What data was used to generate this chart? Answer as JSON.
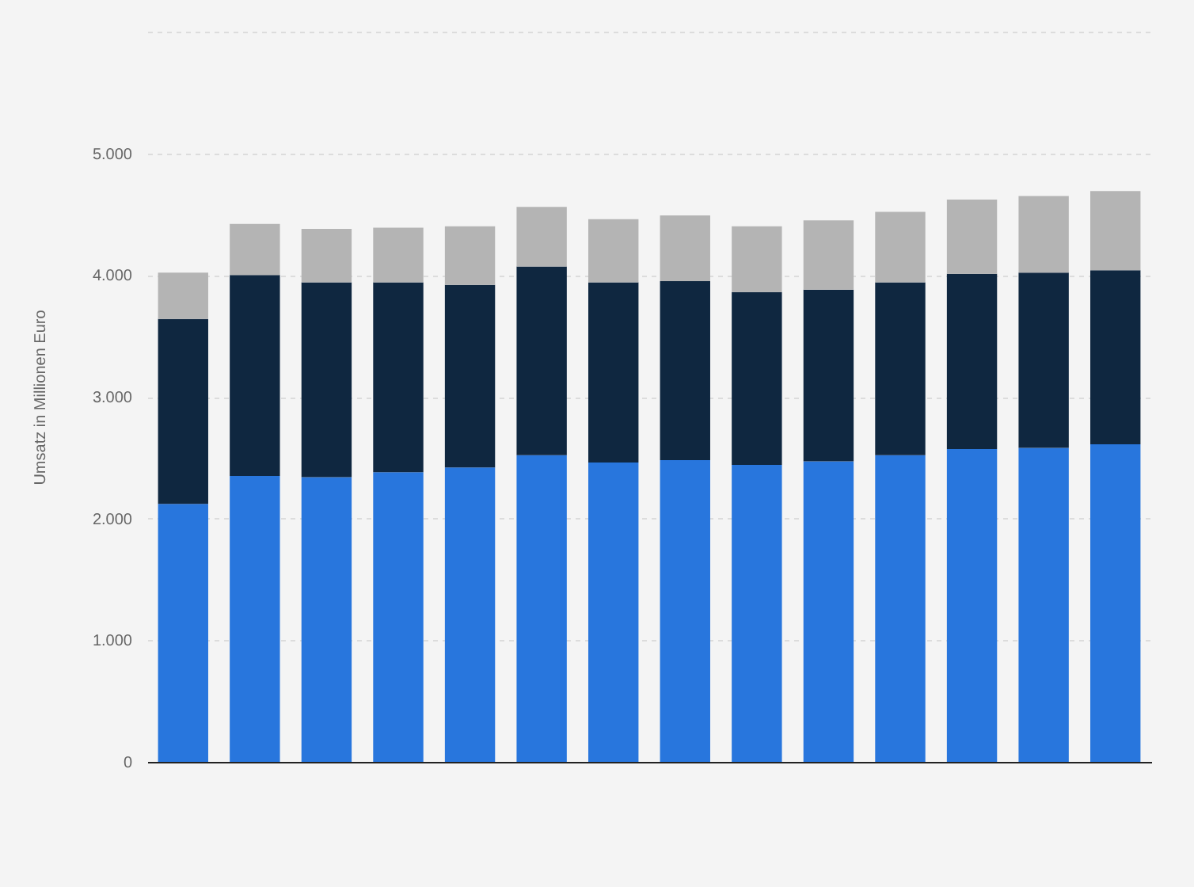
{
  "chart_data": {
    "type": "bar",
    "stacked": true,
    "ylabel": "Umsatz in Millionen Euro",
    "categories": [
      null,
      null,
      null,
      null,
      null,
      null,
      null,
      null,
      null,
      null,
      null,
      null,
      null,
      null
    ],
    "series": [
      {
        "color": "#2876dd",
        "values": [
          2120,
          2350,
          2340,
          2380,
          2420,
          2520,
          2460,
          2480,
          2440,
          2470,
          2520,
          2570,
          2580,
          2610
        ]
      },
      {
        "color": "#0f2740",
        "values": [
          1520,
          1650,
          1600,
          1560,
          1500,
          1550,
          1480,
          1470,
          1420,
          1410,
          1420,
          1440,
          1440,
          1430
        ]
      },
      {
        "color": "#b4b4b4",
        "values": [
          380,
          420,
          440,
          450,
          480,
          490,
          520,
          540,
          540,
          570,
          580,
          610,
          630,
          650
        ]
      }
    ],
    "ylim": [
      0,
      6000
    ],
    "yticks": [
      0,
      {
        "value": 1000,
        "label": "1.000"
      },
      {
        "value": 2000,
        "label": "2.000"
      },
      {
        "value": 3000,
        "label": "3.000"
      },
      {
        "value": 4000,
        "label": "4.000"
      },
      {
        "value": 5000,
        "label": "5.000"
      },
      {
        "value": 6000,
        "label": null
      }
    ],
    "grid": "y",
    "tick_labels": "y",
    "legend": false
  }
}
